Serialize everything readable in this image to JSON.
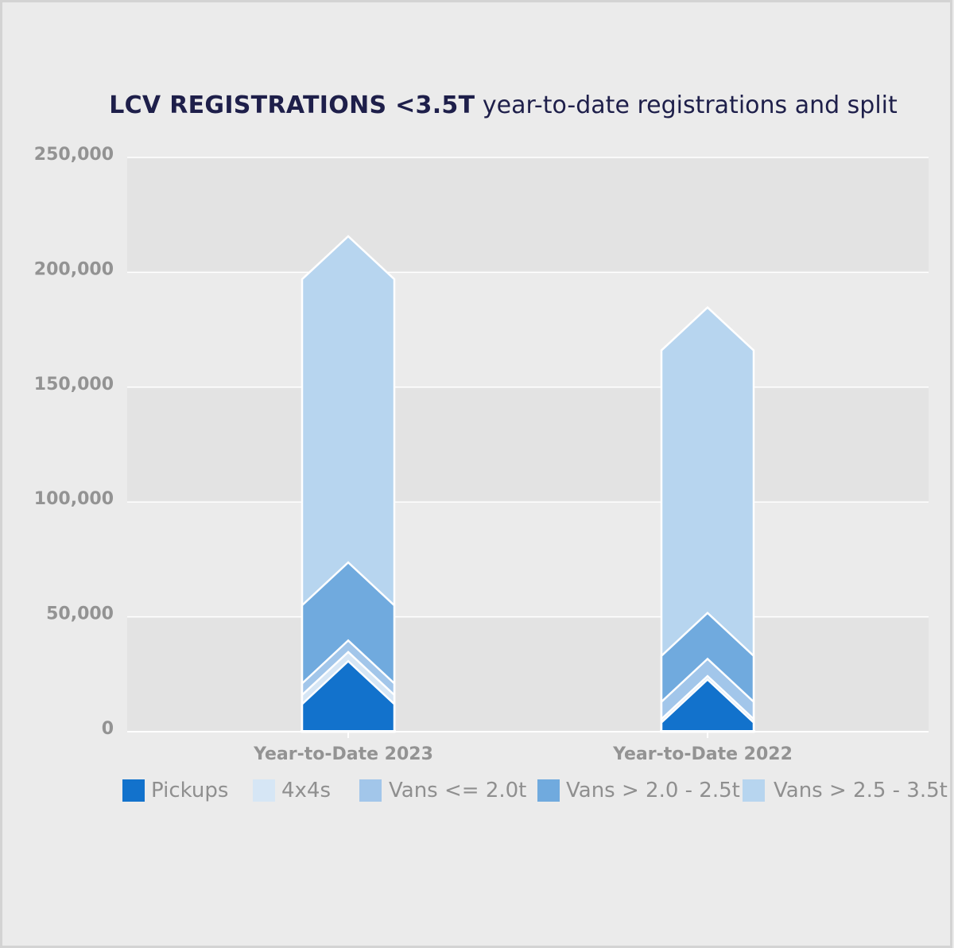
{
  "title_bold": "LCV REGISTRATIONS <3.5T",
  "title_rest": "year-to-date registrations and split",
  "chart_data": {
    "type": "bar",
    "stacked": true,
    "categories": [
      "Year-to-Date 2023",
      "Year-to-Date 2022"
    ],
    "series": [
      {
        "name": "Pickups",
        "values": [
          12000,
          4000
        ],
        "color": "#1272cc"
      },
      {
        "name": "4x4s",
        "values": [
          4000,
          1500
        ],
        "color": "#d6e6f5"
      },
      {
        "name": "Vans <= 2.0t",
        "values": [
          5000,
          7500
        ],
        "color": "#a2c6ea"
      },
      {
        "name": "Vans > 2.0 - 2.5t",
        "values": [
          34000,
          20000
        ],
        "color": "#70aade"
      },
      {
        "name": "Vans > 2.5 - 3.5t",
        "values": [
          142000,
          133000
        ],
        "color": "#b7d5ef"
      }
    ],
    "ylim": [
      0,
      250000
    ],
    "yticks": [
      0,
      50000,
      100000,
      150000,
      200000,
      250000
    ],
    "ytick_labels": [
      "0",
      "50,000",
      "100,000",
      "150,000",
      "200,000",
      "250,000"
    ],
    "grid": true,
    "legend": "bottom"
  }
}
